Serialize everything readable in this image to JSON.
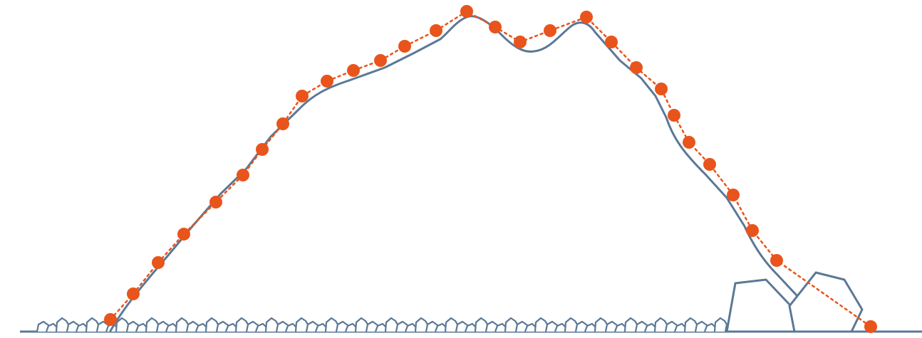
{
  "colors": {
    "terrain": "#5b7896",
    "survey": "#e8541b",
    "background": "#ffffff"
  },
  "icons": [
    "pebble-icon",
    "boulder-icon"
  ]
}
